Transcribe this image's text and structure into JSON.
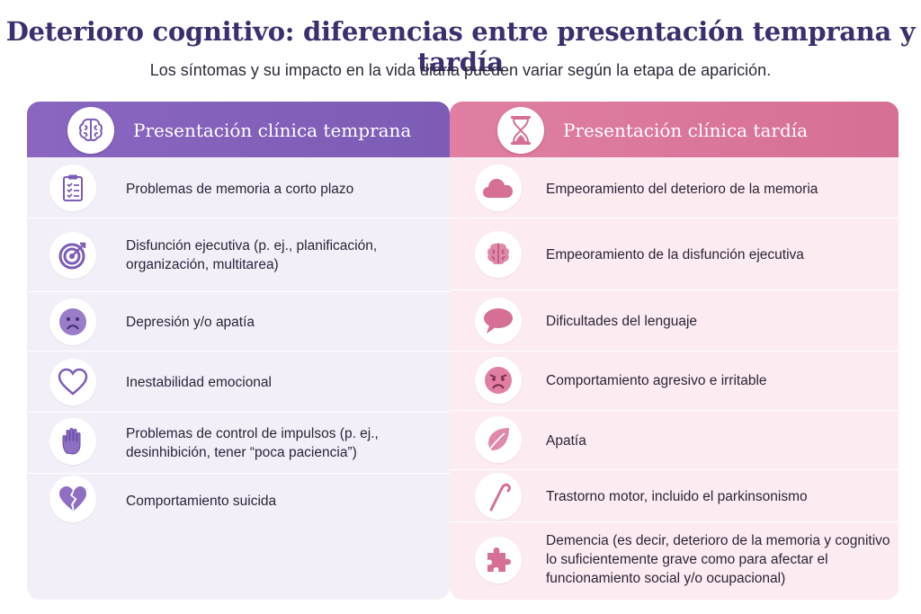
{
  "title": "Deterioro cognitivo: diferencias entre presentación temprana y tardía",
  "subtitle": "Los síntomas y su impacto en la vida diaria pueden variar según la etapa de aparición.",
  "colors": {
    "early_accent": "#7d5cb6",
    "late_accent": "#d66f95",
    "title": "#3d2f6e"
  },
  "early": {
    "header": "Presentación clínica temprana",
    "header_icon": "brain-icon",
    "items": [
      {
        "text": "Problemas de memoria a corto plazo",
        "icon": "clipboard-checklist-icon"
      },
      {
        "text": "Disfunción ejecutiva (p. ej., planificación, organización, multitarea)",
        "icon": "target-icon"
      },
      {
        "text": "Depresión y/o apatía",
        "icon": "sad-face-icon"
      },
      {
        "text": "Inestabilidad emocional",
        "icon": "heart-outline-icon"
      },
      {
        "text": "Problemas de control de impulsos (p. ej., desinhibición, tener “poca paciencia”)",
        "icon": "raised-hand-icon"
      },
      {
        "text": "Comportamiento suicida",
        "icon": "broken-heart-icon"
      }
    ]
  },
  "late": {
    "header": "Presentación clínica tardía",
    "header_icon": "hourglass-icon",
    "items": [
      {
        "text": "Empeoramiento del deterioro de la memoria",
        "icon": "cloud-icon"
      },
      {
        "text": "Empeoramiento de la disfunción ejecutiva",
        "icon": "brain-icon"
      },
      {
        "text": "Dificultades del lenguaje",
        "icon": "speech-bubble-icon"
      },
      {
        "text": "Comportamiento agresivo e irritable",
        "icon": "angry-face-icon"
      },
      {
        "text": "Apatía",
        "icon": "leaf-icon"
      },
      {
        "text": "Trastorno motor, incluido el parkinsonismo",
        "icon": "cane-icon"
      },
      {
        "text": "Demencia (es decir, deterioro de la memoria y cognitivo lo suficientemente grave como para afectar el funcionamiento social y/o ocupacional)",
        "icon": "puzzle-piece-icon"
      }
    ]
  }
}
